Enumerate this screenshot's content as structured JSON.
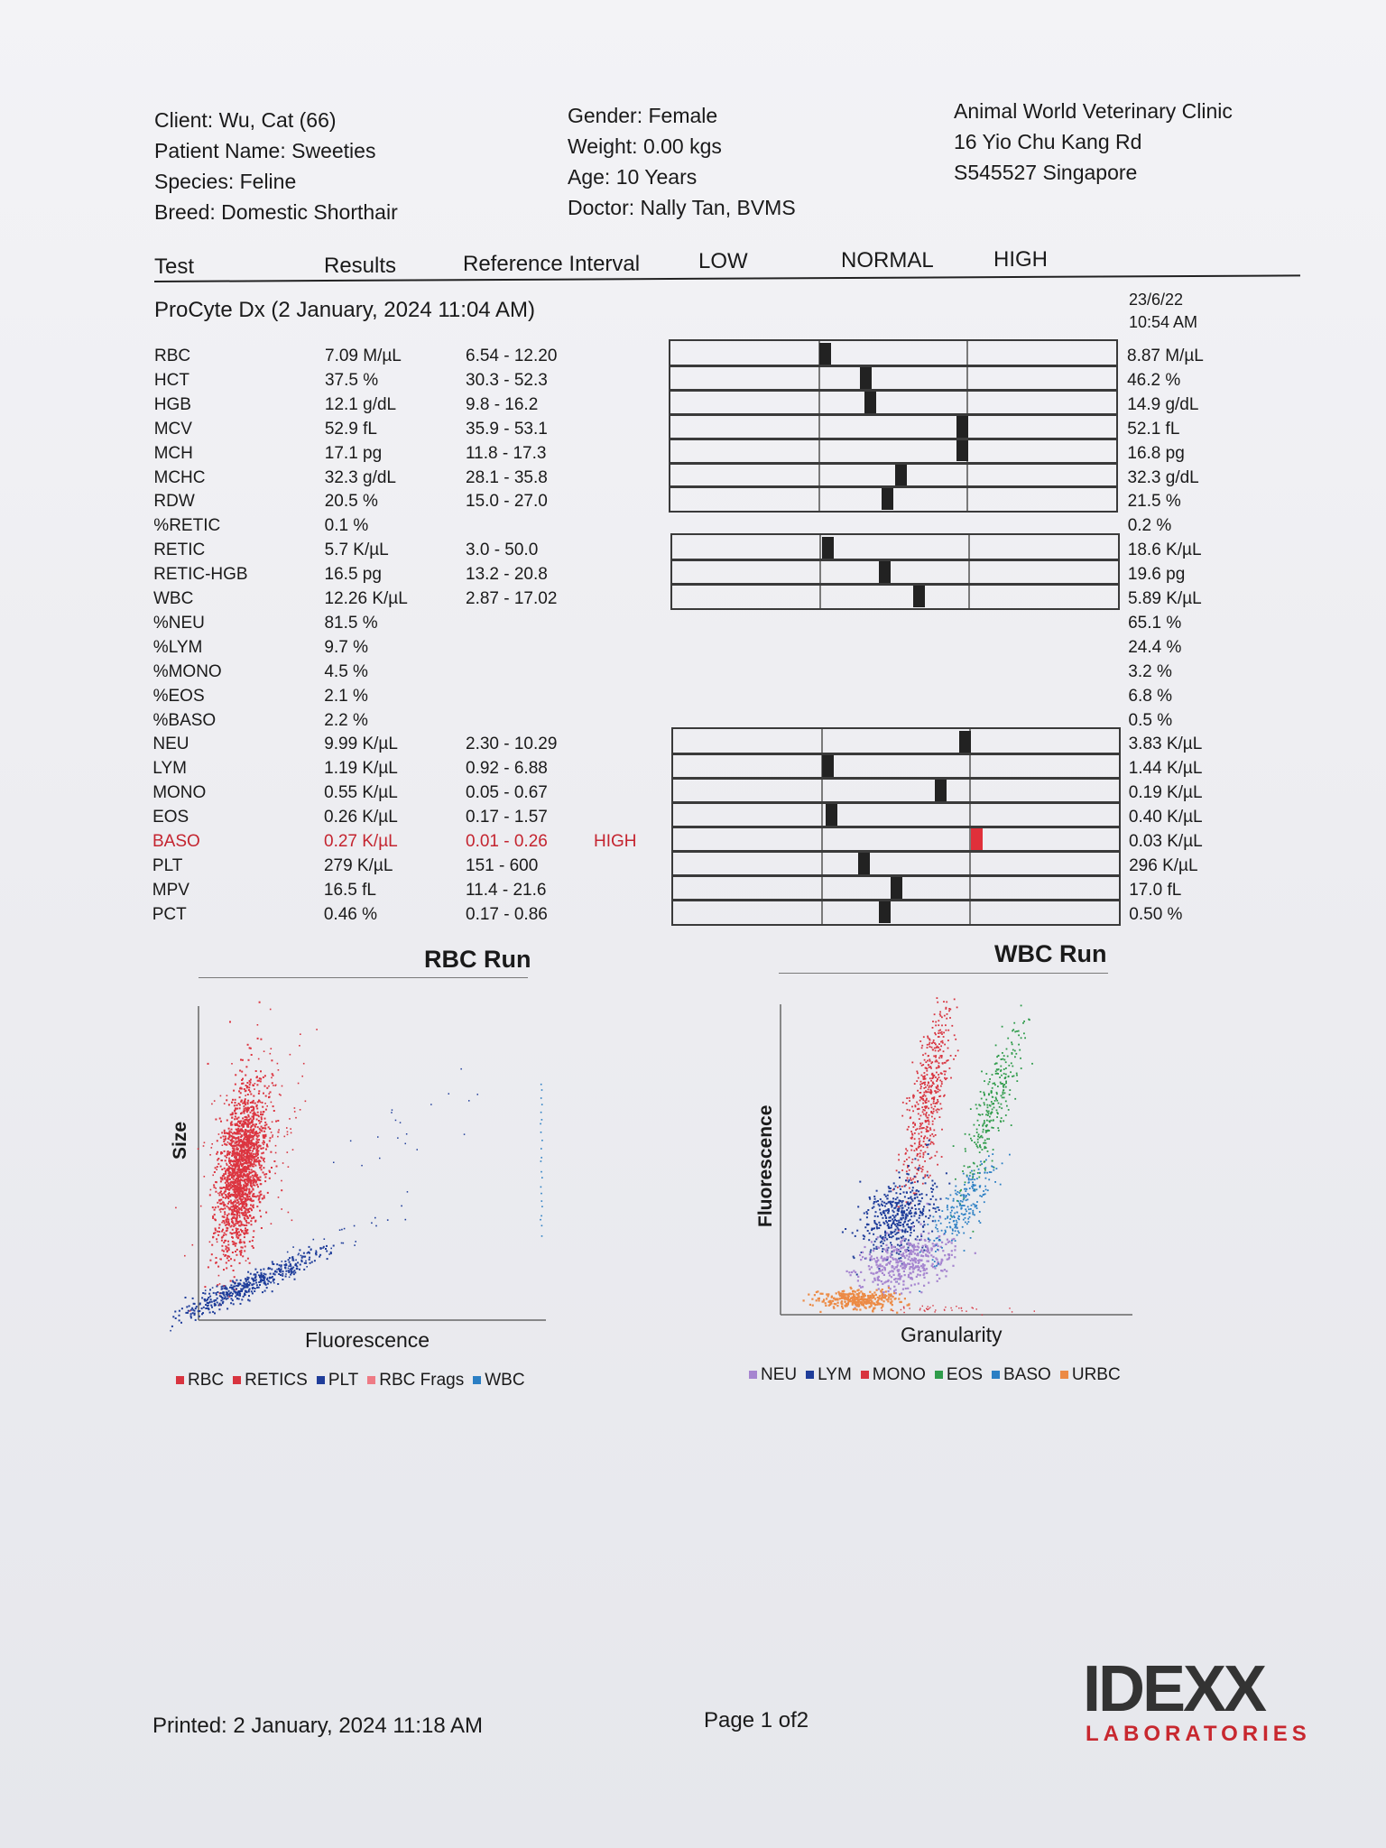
{
  "client": {
    "client": "Client: Wu, Cat (66)",
    "patient": "Patient Name: Sweeties",
    "species": "Species: Feline",
    "breed": "Breed: Domestic Shorthair"
  },
  "patient": {
    "gender": "Gender: Female",
    "weight": "Weight: 0.00 kgs",
    "age": "Age: 10 Years",
    "doctor": "Doctor: Nally Tan, BVMS"
  },
  "clinic": {
    "name": "Animal World Veterinary Clinic",
    "address1": "16 Yio Chu Kang Rd",
    "address2": "S545527 Singapore"
  },
  "columns": {
    "test": "Test",
    "results": "Results",
    "reference": "Reference Interval",
    "low": "LOW",
    "normal": "NORMAL",
    "high": "HIGH"
  },
  "run": {
    "title": "ProCyte Dx (2 January, 2024 11:04 AM)",
    "prev_date": "23/6/22",
    "prev_time": "10:54 AM"
  },
  "rows": [
    {
      "test": "RBC",
      "result": "7.09 M/µL",
      "ref": "6.54 - 12.20",
      "flag": "",
      "prev": "8.87 M/µL",
      "level": 0.04
    },
    {
      "test": "HCT",
      "result": "37.5 %",
      "ref": "30.3 - 52.3",
      "flag": "",
      "prev": "46.2 %",
      "level": 0.31
    },
    {
      "test": "HGB",
      "result": "12.1 g/dL",
      "ref": "9.8 - 16.2",
      "flag": "",
      "prev": "14.9 g/dL",
      "level": 0.34
    },
    {
      "test": "MCV",
      "result": "52.9 fL",
      "ref": "35.9 - 53.1",
      "flag": "",
      "prev": "52.1 fL",
      "level": 0.96
    },
    {
      "test": "MCH",
      "result": "17.1 pg",
      "ref": "11.8 - 17.3",
      "flag": "",
      "prev": "16.8 pg",
      "level": 0.96
    },
    {
      "test": "MCHC",
      "result": "32.3 g/dL",
      "ref": "28.1 - 35.8",
      "flag": "",
      "prev": "32.3 g/dL",
      "level": 0.55
    },
    {
      "test": "RDW",
      "result": "20.5 %",
      "ref": "15.0 - 27.0",
      "flag": "",
      "prev": "21.5 %",
      "level": 0.46
    },
    {
      "test": "%RETIC",
      "result": "0.1 %",
      "ref": "",
      "flag": "",
      "prev": "0.2 %",
      "level": null
    },
    {
      "test": "RETIC",
      "result": "5.7 K/µL",
      "ref": "3.0 - 50.0",
      "flag": "",
      "prev": "18.6 K/µL",
      "level": 0.05
    },
    {
      "test": "RETIC-HGB",
      "result": "16.5 pg",
      "ref": "13.2 - 20.8",
      "flag": "",
      "prev": "19.6 pg",
      "level": 0.43
    },
    {
      "test": "WBC",
      "result": "12.26 K/µL",
      "ref": "2.87 - 17.02",
      "flag": "",
      "prev": "5.89 K/µL",
      "level": 0.66
    },
    {
      "test": "%NEU",
      "result": "81.5 %",
      "ref": "",
      "flag": "",
      "prev": "65.1 %",
      "level": null
    },
    {
      "test": "%LYM",
      "result": "9.7 %",
      "ref": "",
      "flag": "",
      "prev": "24.4 %",
      "level": null
    },
    {
      "test": "%MONO",
      "result": "4.5 %",
      "ref": "",
      "flag": "",
      "prev": "3.2 %",
      "level": null
    },
    {
      "test": "%EOS",
      "result": "2.1 %",
      "ref": "",
      "flag": "",
      "prev": "6.8 %",
      "level": null
    },
    {
      "test": "%BASO",
      "result": "2.2 %",
      "ref": "",
      "flag": "",
      "prev": "0.5 %",
      "level": null
    },
    {
      "test": "NEU",
      "result": "9.99 K/µL",
      "ref": "2.30 - 10.29",
      "flag": "",
      "prev": "3.83 K/µL",
      "level": 0.96
    },
    {
      "test": "LYM",
      "result": "1.19 K/µL",
      "ref": "0.92 - 6.88",
      "flag": "",
      "prev": "1.44 K/µL",
      "level": 0.04
    },
    {
      "test": "MONO",
      "result": "0.55 K/µL",
      "ref": "0.05 - 0.67",
      "flag": "",
      "prev": "0.19 K/µL",
      "level": 0.8
    },
    {
      "test": "EOS",
      "result": "0.26 K/µL",
      "ref": "0.17 - 1.57",
      "flag": "",
      "prev": "0.40 K/µL",
      "level": 0.06
    },
    {
      "test": "BASO",
      "result": "0.27 K/µL",
      "ref": "0.01 - 0.26",
      "flag": "HIGH",
      "prev": "0.03 K/µL",
      "level": 1.04
    },
    {
      "test": "PLT",
      "result": "279 K/µL",
      "ref": "151 - 600",
      "flag": "",
      "prev": "296 K/µL",
      "level": 0.28
    },
    {
      "test": "MPV",
      "result": "16.5 fL",
      "ref": "11.4 - 21.6",
      "flag": "",
      "prev": "17.0 fL",
      "level": 0.5
    },
    {
      "test": "PCT",
      "result": "0.46 %",
      "ref": "0.17 - 0.86",
      "flag": "",
      "prev": "0.50 %",
      "level": 0.42
    }
  ],
  "rbc_run": {
    "title": "RBC Run",
    "xlabel": "Fluorescence",
    "ylabel": "Size",
    "legend": [
      {
        "label": "RBC",
        "color": "#d8343f"
      },
      {
        "label": "RETICS",
        "color": "#d8343f"
      },
      {
        "label": "PLT",
        "color": "#1f3d9a"
      },
      {
        "label": "RBC Frags",
        "color": "#ee7b85"
      },
      {
        "label": "WBC",
        "color": "#2b7fc4"
      }
    ]
  },
  "wbc_run": {
    "title": "WBC Run",
    "xlabel": "Granularity",
    "ylabel": "Fluorescence",
    "legend": [
      {
        "label": "NEU",
        "color": "#a685d0"
      },
      {
        "label": "LYM",
        "color": "#1f3d9a"
      },
      {
        "label": "MONO",
        "color": "#d8343f"
      },
      {
        "label": "EOS",
        "color": "#2e9b4a"
      },
      {
        "label": "BASO",
        "color": "#2b7fc4"
      },
      {
        "label": "URBC",
        "color": "#ec8a45"
      }
    ]
  },
  "footer": {
    "printed": "Printed: 2 January, 2024 11:18 AM",
    "page": "Page 1 of2",
    "logo_text": "IDEXX",
    "logo_sub": "LABORATORIES"
  }
}
